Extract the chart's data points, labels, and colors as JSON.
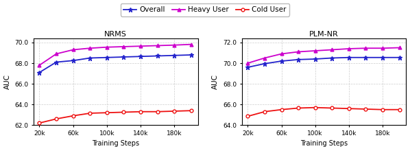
{
  "x_values": [
    20000,
    40000,
    60000,
    80000,
    100000,
    120000,
    140000,
    160000,
    180000,
    200000
  ],
  "x_tick_positions": [
    20000,
    60000,
    100000,
    140000,
    180000
  ],
  "x_tick_labels": [
    "20k",
    "60k",
    "100k",
    "140k",
    "180k"
  ],
  "nrms": {
    "title": "NRMS",
    "overall": [
      67.1,
      68.1,
      68.25,
      68.5,
      68.55,
      68.6,
      68.65,
      68.7,
      68.75,
      68.8
    ],
    "heavy_user": [
      67.8,
      68.9,
      69.3,
      69.45,
      69.55,
      69.6,
      69.65,
      69.7,
      69.75,
      69.82
    ],
    "cold_user": [
      62.2,
      62.6,
      62.9,
      63.15,
      63.2,
      63.25,
      63.3,
      63.3,
      63.35,
      63.4
    ],
    "ylim": [
      62.0,
      70.4
    ],
    "yticks": [
      62.0,
      64.0,
      66.0,
      68.0,
      70.0
    ]
  },
  "plmnr": {
    "title": "PLM-NR",
    "overall": [
      69.6,
      69.95,
      70.2,
      70.35,
      70.4,
      70.5,
      70.55,
      70.55,
      70.55,
      70.55
    ],
    "heavy_user": [
      70.0,
      70.5,
      70.9,
      71.1,
      71.2,
      71.3,
      71.4,
      71.45,
      71.45,
      71.5
    ],
    "cold_user": [
      64.85,
      65.3,
      65.5,
      65.65,
      65.7,
      65.65,
      65.6,
      65.55,
      65.5,
      65.5
    ],
    "ylim": [
      64.0,
      72.4
    ],
    "yticks": [
      64.0,
      66.0,
      68.0,
      70.0,
      72.0
    ]
  },
  "colors": {
    "overall": "#2222cc",
    "heavy_user": "#cc00cc",
    "cold_user": "#ee1111"
  },
  "legend_labels": [
    "Overall",
    "Heavy User",
    "Cold User"
  ],
  "xlabel": "Training Steps",
  "ylabel": "AUC",
  "background_color": "#ffffff",
  "grid_color": "#cccccc"
}
